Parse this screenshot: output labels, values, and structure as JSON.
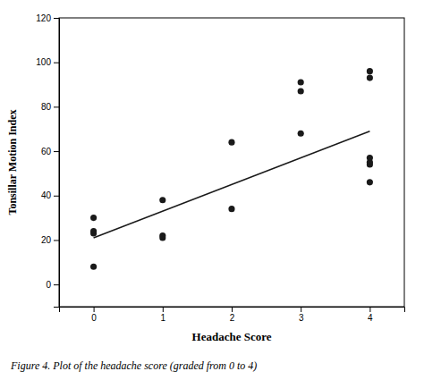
{
  "chart_data": {
    "type": "scatter",
    "x_label": "Headache Score",
    "y_label": "Tonsillar Motion Index",
    "caption": "Figure 4. Plot of the headache score (graded from 0 to 4)",
    "series": [
      {
        "type": "scatter",
        "marker": "circle",
        "color": "#1a1a1a",
        "x": [
          0,
          0,
          0,
          0,
          1,
          1,
          1,
          2,
          2,
          3,
          3,
          3,
          4,
          4,
          4,
          4,
          4,
          4
        ],
        "values": [
          8,
          23,
          24,
          30,
          21,
          22,
          38,
          34,
          64,
          68,
          87,
          91,
          46,
          54,
          55,
          57,
          93,
          96
        ]
      },
      {
        "type": "line",
        "line_style": "solid",
        "color": "#1a1a1a",
        "x": [
          0,
          4
        ],
        "values": [
          21,
          69
        ]
      }
    ],
    "xlim": [
      -0.5,
      4.5
    ],
    "ylim": [
      -10,
      120
    ],
    "xticks": [
      0,
      1,
      2,
      3,
      4
    ],
    "yticks": [
      0,
      20,
      40,
      60,
      80,
      100,
      120
    ],
    "grid": false
  }
}
